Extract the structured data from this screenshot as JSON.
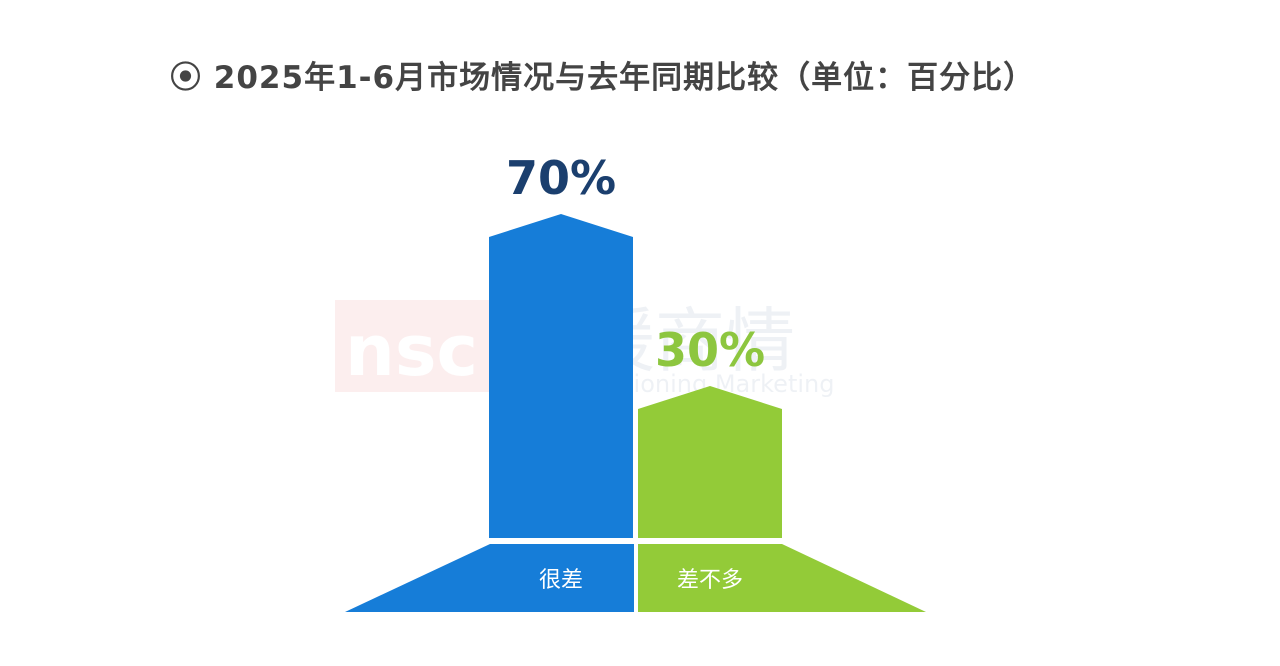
{
  "title": "⦿ 2025年1-6月市场情况与去年同期比较（单位：百分比）",
  "watermark": {
    "logo": "nsc",
    "text": "冷暖商情",
    "subtext": "Air Conditioning Marketing"
  },
  "chart_data": {
    "type": "bar",
    "title": "⦿ 2025年1-6月市场情况与去年同期比较（单位：百分比）",
    "categories": [
      "很差",
      "差不多"
    ],
    "values": [
      70,
      30
    ],
    "data_labels": [
      "70%",
      "30%"
    ],
    "unit": "%",
    "ylim": [
      0,
      100
    ],
    "grid": false,
    "legend": "none",
    "colors": [
      "#167dd8",
      "#93cb38"
    ],
    "label_colors": [
      "#1b3f6e",
      "#8dc63f"
    ]
  }
}
